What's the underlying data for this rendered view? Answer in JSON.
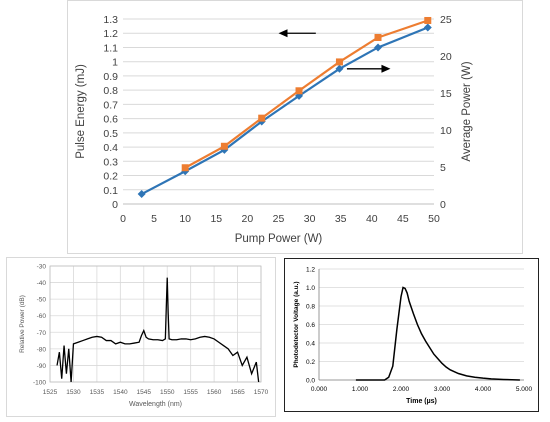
{
  "chart_data": [
    {
      "type": "line",
      "xlabel": "Pump Power (W)",
      "ylabel": "Pulse Energy (mJ)",
      "y2label": "Average Power (W)",
      "xlim": [
        0,
        50
      ],
      "ylim": [
        0,
        1.3
      ],
      "y2lim": [
        0,
        25
      ],
      "x_ticks": [
        "0",
        "5",
        "10",
        "15",
        "20",
        "25",
        "30",
        "35",
        "40",
        "45",
        "50"
      ],
      "y_ticks": [
        "0",
        "0.1",
        "0.2",
        "0.3",
        "0.4",
        "0.5",
        "0.6",
        "0.7",
        "0.8",
        "0.9",
        "1",
        "1.1",
        "1.2",
        "1.3"
      ],
      "y2_ticks": [
        "0",
        "5",
        "10",
        "15",
        "20",
        "25"
      ],
      "grid": "horizontal",
      "series": [
        {
          "axis": "left",
          "color": "#2e75b6",
          "marker": "diamond",
          "x": [
            3,
            10,
            16.3,
            22.3,
            28.3,
            34.8,
            41,
            49
          ],
          "y": [
            0.07,
            0.23,
            0.38,
            0.58,
            0.76,
            0.95,
            1.1,
            1.24
          ]
        },
        {
          "axis": "right",
          "color": "#ed7d31",
          "marker": "square",
          "x": [
            10,
            16.3,
            22.3,
            28.3,
            34.8,
            41,
            49
          ],
          "y": [
            4.9,
            7.8,
            11.6,
            15.3,
            19.2,
            22.5,
            24.8
          ]
        }
      ],
      "arrows": [
        {
          "direction": "left",
          "x_from": 31,
          "x_to": 25,
          "y": 1.2
        },
        {
          "direction": "right",
          "x_from": 36,
          "x_to": 43,
          "y": 0.95
        }
      ]
    },
    {
      "type": "line",
      "xlabel": "Wavelength (nm)",
      "ylabel": "Relative Power (dB)",
      "xlim": [
        1525,
        1570
      ],
      "ylim": [
        -100,
        -30
      ],
      "x_ticks": [
        "1525",
        "1530",
        "1535",
        "1540",
        "1545",
        "1550",
        "1555",
        "1560",
        "1565",
        "1570"
      ],
      "y_ticks": [
        "-100",
        "-90",
        "-80",
        "-70",
        "-60",
        "-50",
        "-40",
        "-30"
      ],
      "grid": "both",
      "series": [
        {
          "color": "#000000",
          "x": [
            1526.5,
            1527,
            1527.5,
            1528,
            1528.5,
            1529,
            1529.5,
            1530,
            1531,
            1532,
            1533,
            1534,
            1535,
            1536,
            1537,
            1538,
            1539,
            1540,
            1541,
            1542,
            1543,
            1544,
            1544.5,
            1545,
            1545.5,
            1546,
            1547,
            1548,
            1549,
            1549.6,
            1549.8,
            1550,
            1550.2,
            1550.4,
            1551,
            1552,
            1553,
            1554,
            1555,
            1556,
            1557,
            1558,
            1559,
            1560,
            1561,
            1562,
            1563,
            1564,
            1565,
            1566,
            1567,
            1568,
            1569,
            1569.5
          ],
          "y": [
            -90,
            -82,
            -98,
            -78,
            -95,
            -80,
            -100,
            -77,
            -76,
            -75,
            -74,
            -73,
            -72.5,
            -73,
            -75,
            -75,
            -77,
            -76,
            -77,
            -77,
            -76.5,
            -76,
            -72,
            -69,
            -73,
            -74,
            -74.5,
            -74.5,
            -75,
            -74,
            -55,
            -37,
            -58,
            -74,
            -74.5,
            -74.5,
            -74,
            -74,
            -74.5,
            -74,
            -73,
            -72.5,
            -73,
            -74,
            -76,
            -78,
            -80,
            -84,
            -82,
            -90,
            -85,
            -95,
            -88,
            -100
          ]
        }
      ]
    },
    {
      "type": "line",
      "xlabel": "Time (µs)",
      "ylabel": "Photodetector Voltage (a.u.)",
      "xlim": [
        0,
        5
      ],
      "ylim": [
        0,
        1.2
      ],
      "x_ticks": [
        "0.000",
        "1.000",
        "2.000",
        "3.000",
        "4.000",
        "5.000"
      ],
      "y_ticks": [
        "0.0",
        "0.2",
        "0.4",
        "0.6",
        "0.8",
        "1.0",
        "1.2"
      ],
      "grid": "horizontal",
      "series": [
        {
          "color": "#000000",
          "x": [
            0.9,
            1.6,
            1.7,
            1.8,
            1.9,
            2.0,
            2.05,
            2.1,
            2.15,
            2.2,
            2.3,
            2.4,
            2.5,
            2.6,
            2.7,
            2.8,
            2.9,
            3.0,
            3.1,
            3.2,
            3.4,
            3.6,
            3.8,
            4.0,
            4.2,
            4.5,
            4.9
          ],
          "y": [
            0,
            0,
            0.03,
            0.15,
            0.55,
            0.9,
            1.0,
            0.99,
            0.94,
            0.85,
            0.72,
            0.6,
            0.5,
            0.42,
            0.35,
            0.28,
            0.23,
            0.18,
            0.14,
            0.11,
            0.07,
            0.045,
            0.03,
            0.02,
            0.012,
            0.006,
            0
          ]
        }
      ]
    }
  ]
}
